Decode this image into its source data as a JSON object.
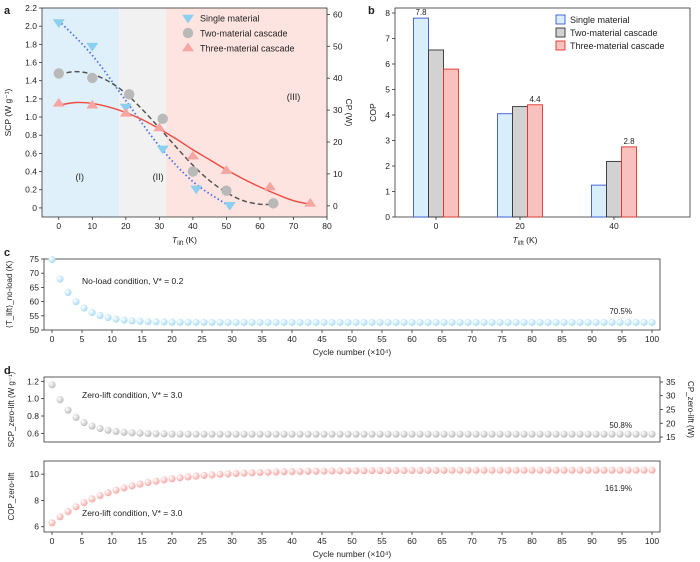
{
  "chart_data": [
    {
      "id": "a",
      "panel_label": "a",
      "type": "scatter",
      "xlabel_main": "T",
      "xlabel_sub": "lift",
      "xlabel_unit": " (K)",
      "ylabel_left": "SCP (W g⁻¹)",
      "ylabel_right": "CP (W)",
      "xlim": [
        -5,
        80
      ],
      "ylim_left": [
        -0.1,
        2.2
      ],
      "ylim_right": [
        -3.5,
        62
      ],
      "xticks": [
        "0",
        "10",
        "20",
        "30",
        "40",
        "50",
        "60",
        "70",
        "80"
      ],
      "yticks_left": [
        "0",
        "0.2",
        "0.4",
        "0.6",
        "0.8",
        "1.0",
        "1.2",
        "1.4",
        "1.6",
        "1.8",
        "2.0",
        "2.2"
      ],
      "yticks_right": [
        "0",
        "10",
        "20",
        "30",
        "40",
        "50",
        "60"
      ],
      "regions": [
        {
          "label": "(I)",
          "x0": -5,
          "x1": 18,
          "color": "#dff0fa"
        },
        {
          "label": "(II)",
          "x0": 18,
          "x1": 32,
          "color": "#f1f1f1"
        },
        {
          "label": "(III)",
          "x0": 32,
          "x1": 80,
          "color": "#fde4e1"
        }
      ],
      "series": [
        {
          "name": "Single material",
          "color": "#8ccff0",
          "marker": "triangle-down",
          "x": [
            0,
            10,
            20,
            31,
            41,
            51
          ],
          "y": [
            2.04,
            1.78,
            1.11,
            0.65,
            0.21,
            0.03
          ],
          "fit_x": [
            0,
            10,
            20,
            30,
            40,
            50
          ],
          "fit_y": [
            2.06,
            1.68,
            1.18,
            0.68,
            0.29,
            0.04
          ],
          "fit_color": "#4d6ee8"
        },
        {
          "name": "Two-material cascade",
          "color": "#b9b9b9",
          "marker": "circle",
          "x": [
            0,
            10,
            21,
            31,
            40,
            50,
            64
          ],
          "y": [
            1.48,
            1.43,
            1.25,
            0.98,
            0.4,
            0.19,
            0.05
          ],
          "fit_x": [
            0,
            5,
            10,
            15,
            20,
            25,
            30,
            35,
            40,
            45,
            50,
            55,
            60,
            64
          ],
          "fit_y": [
            1.47,
            1.5,
            1.47,
            1.39,
            1.26,
            1.08,
            0.88,
            0.67,
            0.47,
            0.3,
            0.17,
            0.08,
            0.04,
            0.04
          ],
          "fit_color": "#555555"
        },
        {
          "name": "Three-material cascade",
          "color": "#f6a5a0",
          "marker": "triangle-up",
          "x": [
            0,
            10,
            20,
            30,
            40,
            50,
            63,
            75
          ],
          "y": [
            1.15,
            1.13,
            1.04,
            0.88,
            0.57,
            0.41,
            0.23,
            0.05
          ],
          "fit_x": [
            0,
            5,
            10,
            15,
            20,
            25,
            30,
            35,
            40,
            45,
            50,
            55,
            60,
            65,
            70,
            75
          ],
          "fit_y": [
            1.13,
            1.16,
            1.15,
            1.11,
            1.05,
            0.97,
            0.87,
            0.76,
            0.64,
            0.53,
            0.42,
            0.32,
            0.23,
            0.15,
            0.08,
            0.04
          ],
          "fit_color": "#ee4a42"
        }
      ]
    },
    {
      "id": "b",
      "panel_label": "b",
      "type": "bar",
      "ylabel": "COP",
      "xlabel_main": "T",
      "xlabel_sub": "lift",
      "xlabel_unit": " (K)",
      "categories": [
        "0",
        "20",
        "40"
      ],
      "ylim": [
        0,
        8
      ],
      "yticks": [
        "0",
        "1",
        "2",
        "3",
        "4",
        "5",
        "6",
        "7",
        "8"
      ],
      "series": [
        {
          "name": "Single material",
          "fill": "#d8eefb",
          "stroke": "#3a55d6",
          "values": [
            7.8,
            4.05,
            1.25
          ]
        },
        {
          "name": "Two-material cascade",
          "fill": "#d2d2d2",
          "stroke": "#333333",
          "values": [
            6.55,
            4.33,
            2.18
          ]
        },
        {
          "name": "Three-material cascade",
          "fill": "#f9c1bd",
          "stroke": "#e2312b",
          "values": [
            5.8,
            4.4,
            2.75
          ]
        }
      ],
      "data_labels": [
        {
          "text": "7.8",
          "category": 0,
          "series": 0,
          "color": "#2f47c8"
        },
        {
          "text": "4.4",
          "category": 1,
          "series": 2,
          "color": "#d9302a"
        },
        {
          "text": "2.8",
          "category": 2,
          "series": 2,
          "color": "#d9302a"
        }
      ]
    },
    {
      "id": "c",
      "panel_label": "c",
      "type": "scatter",
      "ylabel": "⟨T_lift⟩_no-load (K)",
      "xlabel": "Cycle number (×10⁴)",
      "annotation": "No-load condition, V* = 0.2",
      "end_label": "70.5%",
      "color": "#a9dcf3",
      "ylim": [
        50,
        75
      ],
      "yticks": [
        "50",
        "55",
        "60",
        "65",
        "70",
        "75"
      ],
      "xlim": [
        0,
        100
      ],
      "xticks": [
        "0",
        "5",
        "10",
        "15",
        "20",
        "25",
        "30",
        "35",
        "40",
        "45",
        "50",
        "55",
        "60",
        "65",
        "70",
        "75",
        "80",
        "85",
        "90",
        "95",
        "100"
      ],
      "points": 76,
      "curve": {
        "start": 74.8,
        "end": 52.7,
        "tau": 3.6
      }
    },
    {
      "id": "d1",
      "panel_label": "d",
      "type": "scatter",
      "ylabel": "SCP_zero-lift (W g⁻¹)",
      "ylabel_right": "CP_zero-lift (W)",
      "annotation": "Zero-lift condition, V* = 3.0",
      "end_label": "50.8%",
      "color": "#bdbdbd",
      "ylim": [
        0.5,
        1.25
      ],
      "yticks": [
        "0.6",
        "0.8",
        "1.0",
        "1.2"
      ],
      "yticks_right": [
        "15",
        "20",
        "25",
        "30",
        "35"
      ],
      "ylim_right": [
        13.2,
        36.8
      ],
      "xlim": [
        0,
        100
      ],
      "points": 76,
      "curve": {
        "start": 1.16,
        "end": 0.59,
        "tau": 3.7
      }
    },
    {
      "id": "d2",
      "panel_label": "",
      "type": "scatter",
      "ylabel": "COP_zero-lift",
      "xlabel": "Cycle number (×10⁴)",
      "annotation": "Zero-lift condition, V* = 3.0",
      "end_label": "161.9%",
      "color": "#f4a9a6",
      "ylim": [
        5.6,
        11
      ],
      "yticks": [
        "6",
        "8",
        "10"
      ],
      "xlim": [
        0,
        100
      ],
      "xticks": [
        "0",
        "5",
        "10",
        "15",
        "20",
        "25",
        "30",
        "35",
        "40",
        "45",
        "50",
        "55",
        "60",
        "65",
        "70",
        "75",
        "80",
        "85",
        "90",
        "95",
        "100"
      ],
      "points": 76,
      "curve": {
        "start": 6.3,
        "end": 10.3,
        "tau": 11
      }
    }
  ]
}
